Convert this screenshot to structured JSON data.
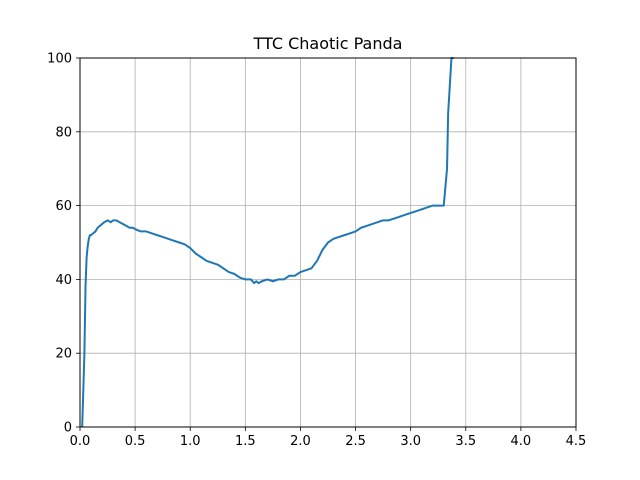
{
  "chart_data": {
    "type": "line",
    "title": "TTC Chaotic Panda",
    "xlabel": "",
    "ylabel": "",
    "xlim": [
      0.0,
      4.5
    ],
    "ylim": [
      0,
      100
    ],
    "x_ticks": [
      "0.0",
      "0.5",
      "1.0",
      "1.5",
      "2.0",
      "2.5",
      "3.0",
      "3.5",
      "4.0",
      "4.5"
    ],
    "y_ticks": [
      "0",
      "20",
      "40",
      "60",
      "80",
      "100"
    ],
    "grid": true,
    "legend": "none",
    "series": [
      {
        "color": "#1f77b4",
        "x": [
          0.02,
          0.04,
          0.05,
          0.06,
          0.07,
          0.08,
          0.09,
          0.1,
          0.12,
          0.14,
          0.16,
          0.18,
          0.2,
          0.22,
          0.25,
          0.28,
          0.3,
          0.33,
          0.36,
          0.39,
          0.42,
          0.45,
          0.48,
          0.51,
          0.55,
          0.6,
          0.65,
          0.7,
          0.75,
          0.8,
          0.85,
          0.9,
          0.95,
          1.0,
          1.05,
          1.1,
          1.15,
          1.2,
          1.25,
          1.3,
          1.35,
          1.4,
          1.45,
          1.5,
          1.55,
          1.58,
          1.6,
          1.62,
          1.65,
          1.7,
          1.75,
          1.8,
          1.85,
          1.9,
          1.95,
          2.0,
          2.05,
          2.1,
          2.15,
          2.2,
          2.25,
          2.3,
          2.35,
          2.4,
          2.45,
          2.5,
          2.55,
          2.6,
          2.65,
          2.7,
          2.75,
          2.8,
          2.85,
          2.9,
          2.95,
          3.0,
          3.05,
          3.1,
          3.15,
          3.2,
          3.25,
          3.3,
          3.33,
          3.34,
          3.36,
          3.37,
          3.39
        ],
        "values": [
          0,
          20,
          38,
          46,
          49,
          51,
          52,
          52,
          52.5,
          53,
          54,
          54.5,
          55,
          55.5,
          56,
          55.5,
          56,
          56,
          55.5,
          55,
          54.5,
          54,
          54,
          53.5,
          53,
          53,
          52.5,
          52,
          51.5,
          51,
          50.5,
          50,
          49.5,
          48.5,
          47,
          46,
          45,
          44.5,
          44,
          43,
          42,
          41.5,
          40.5,
          40,
          40,
          39,
          39.5,
          39,
          39.5,
          40,
          39.5,
          40,
          40,
          41,
          41,
          42,
          42.5,
          43,
          45,
          48,
          50,
          51,
          51.5,
          52,
          52.5,
          53,
          54,
          54.5,
          55,
          55.5,
          56,
          56,
          56.5,
          57,
          57.5,
          58,
          58.5,
          59,
          59.5,
          60,
          60,
          60,
          70,
          85,
          95,
          100,
          100
        ]
      }
    ]
  }
}
